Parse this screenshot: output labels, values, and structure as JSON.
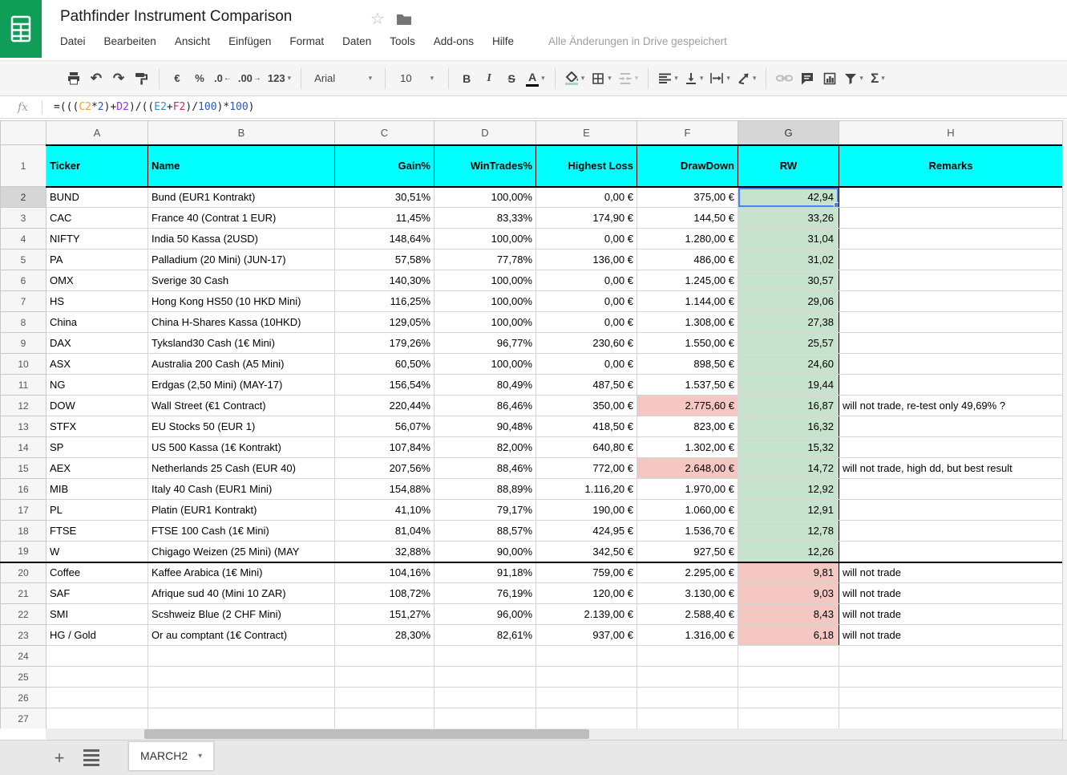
{
  "app": {
    "title": "Pathfinder Instrument Comparison",
    "menus": [
      "Datei",
      "Bearbeiten",
      "Ansicht",
      "Einfügen",
      "Format",
      "Daten",
      "Tools",
      "Add-ons",
      "Hilfe"
    ],
    "save_status": "Alle Änderungen in Drive gespeichert"
  },
  "toolbar": {
    "currency": "€",
    "percent": "%",
    "decrease_decimal": ".0",
    "increase_decimal": ".00",
    "more_formats": "123",
    "font_family": "Arial",
    "font_size": "10",
    "bold": "B",
    "italic": "I",
    "strikethrough": "S",
    "text_color": "A",
    "functions": "Σ"
  },
  "formula_bar": {
    "fx_label": "fx",
    "formula": "=(((C2*2)+D2)/((E2+F2)/100)*100)",
    "tokens": [
      {
        "text": "=(((",
        "color": "#222222"
      },
      {
        "text": "C2",
        "color": "#efa135"
      },
      {
        "text": "*",
        "color": "#222222"
      },
      {
        "text": "2",
        "color": "#2a56c6"
      },
      {
        "text": ")+",
        "color": "#222222"
      },
      {
        "text": "D2",
        "color": "#9334e6"
      },
      {
        "text": ")/((",
        "color": "#222222"
      },
      {
        "text": "E2",
        "color": "#3d85c6"
      },
      {
        "text": "+",
        "color": "#222222"
      },
      {
        "text": "F2",
        "color": "#d0275e"
      },
      {
        "text": ")/",
        "color": "#222222"
      },
      {
        "text": "100",
        "color": "#2a56c6"
      },
      {
        "text": ")*",
        "color": "#222222"
      },
      {
        "text": "100",
        "color": "#2a56c6"
      },
      {
        "text": ")",
        "color": "#222222"
      }
    ]
  },
  "colors": {
    "logo_green": "#0f9d58",
    "header_bg": "#00ffff",
    "rw_green": "#c7e2cd",
    "alert_red": "#f4c7c3",
    "selection_blue": "#4285f4",
    "fill_indicator": "#a5d6c0",
    "text_color_indicator": "#000000"
  },
  "grid": {
    "column_letters": [
      "A",
      "B",
      "C",
      "D",
      "E",
      "F",
      "G",
      "H"
    ],
    "selected_column": "G",
    "selected_row": 2,
    "selected_cell": "G2",
    "row1_number": "1",
    "header_row": {
      "ticker": "Ticker",
      "name": "Name",
      "gain": "Gain%",
      "win": "WinTrades%",
      "loss": "Highest Loss",
      "dd": "DrawDown",
      "rw": "RW",
      "remark": "Remarks"
    },
    "rows": [
      {
        "n": "2",
        "ticker": "BUND",
        "name": "Bund (EUR1 Kontrakt)",
        "gain": "30,51%",
        "win": "100,00%",
        "loss": "0,00 €",
        "dd": "375,00 €",
        "rw": "42,94",
        "rw_state": "green",
        "dd_alert": false,
        "remark": "",
        "selected": true
      },
      {
        "n": "3",
        "ticker": "CAC",
        "name": "France 40 (Contrat 1 EUR)",
        "gain": "11,45%",
        "win": "83,33%",
        "loss": "174,90 €",
        "dd": "144,50 €",
        "rw": "33,26",
        "rw_state": "green",
        "dd_alert": false,
        "remark": ""
      },
      {
        "n": "4",
        "ticker": "NIFTY",
        "name": "India 50 Kassa (2USD)",
        "gain": "148,64%",
        "win": "100,00%",
        "loss": "0,00 €",
        "dd": "1.280,00 €",
        "rw": "31,04",
        "rw_state": "green",
        "dd_alert": false,
        "remark": ""
      },
      {
        "n": "5",
        "ticker": "PA",
        "name": "Palladium (20 Mini) (JUN-17)",
        "gain": "57,58%",
        "win": "77,78%",
        "loss": "136,00 €",
        "dd": "486,00 €",
        "rw": "31,02",
        "rw_state": "green",
        "dd_alert": false,
        "remark": ""
      },
      {
        "n": "6",
        "ticker": "OMX",
        "name": "Sverige 30 Cash",
        "gain": "140,30%",
        "win": "100,00%",
        "loss": "0,00 €",
        "dd": "1.245,00 €",
        "rw": "30,57",
        "rw_state": "green",
        "dd_alert": false,
        "remark": ""
      },
      {
        "n": "7",
        "ticker": "HS",
        "name": "Hong Kong HS50 (10 HKD Mini)",
        "gain": "116,25%",
        "win": "100,00%",
        "loss": "0,00 €",
        "dd": "1.144,00 €",
        "rw": "29,06",
        "rw_state": "green",
        "dd_alert": false,
        "remark": ""
      },
      {
        "n": "8",
        "ticker": "China",
        "name": "China H-Shares Kassa (10HKD)",
        "gain": "129,05%",
        "win": "100,00%",
        "loss": "0,00 €",
        "dd": "1.308,00 €",
        "rw": "27,38",
        "rw_state": "green",
        "dd_alert": false,
        "remark": ""
      },
      {
        "n": "9",
        "ticker": "DAX",
        "name": "Tyksland30 Cash (1€ Mini)",
        "gain": "179,26%",
        "win": "96,77%",
        "loss": "230,60 €",
        "dd": "1.550,00 €",
        "rw": "25,57",
        "rw_state": "green",
        "dd_alert": false,
        "remark": ""
      },
      {
        "n": "10",
        "ticker": "ASX",
        "name": "Australia 200 Cash (A5 Mini)",
        "gain": "60,50%",
        "win": "100,00%",
        "loss": "0,00 €",
        "dd": "898,50 €",
        "rw": "24,60",
        "rw_state": "green",
        "dd_alert": false,
        "remark": ""
      },
      {
        "n": "11",
        "ticker": "NG",
        "name": "Erdgas (2,50 Mini) (MAY-17)",
        "gain": "156,54%",
        "win": "80,49%",
        "loss": "487,50 €",
        "dd": "1.537,50 €",
        "rw": "19,44",
        "rw_state": "green",
        "dd_alert": false,
        "remark": ""
      },
      {
        "n": "12",
        "ticker": "DOW",
        "name": "Wall Street (€1 Contract)",
        "gain": "220,44%",
        "win": "86,46%",
        "loss": "350,00 €",
        "dd": "2.775,60 €",
        "rw": "16,87",
        "rw_state": "green",
        "dd_alert": true,
        "remark": "will not trade, re-test only 49,69% ?"
      },
      {
        "n": "13",
        "ticker": "STFX",
        "name": "EU Stocks 50 (EUR 1)",
        "gain": "56,07%",
        "win": "90,48%",
        "loss": "418,50 €",
        "dd": "823,00 €",
        "rw": "16,32",
        "rw_state": "green",
        "dd_alert": false,
        "remark": ""
      },
      {
        "n": "14",
        "ticker": "SP",
        "name": "US 500 Kassa (1€ Kontrakt)",
        "gain": "107,84%",
        "win": "82,00%",
        "loss": "640,80 €",
        "dd": "1.302,00 €",
        "rw": "15,32",
        "rw_state": "green",
        "dd_alert": false,
        "remark": ""
      },
      {
        "n": "15",
        "ticker": "AEX",
        "name": "Netherlands 25 Cash (EUR 40)",
        "gain": "207,56%",
        "win": "88,46%",
        "loss": "772,00 €",
        "dd": "2.648,00 €",
        "rw": "14,72",
        "rw_state": "green",
        "dd_alert": true,
        "remark": "will not trade, high dd, but best result"
      },
      {
        "n": "16",
        "ticker": "MIB",
        "name": "Italy 40 Cash (EUR1 Mini)",
        "gain": "154,88%",
        "win": "88,89%",
        "loss": "1.116,20 €",
        "dd": "1.970,00 €",
        "rw": "12,92",
        "rw_state": "green",
        "dd_alert": false,
        "remark": ""
      },
      {
        "n": "17",
        "ticker": "PL",
        "name": "Platin (EUR1 Kontrakt)",
        "gain": "41,10%",
        "win": "79,17%",
        "loss": "190,00 €",
        "dd": "1.060,00 €",
        "rw": "12,91",
        "rw_state": "green",
        "dd_alert": false,
        "remark": ""
      },
      {
        "n": "18",
        "ticker": "FTSE",
        "name": "FTSE 100 Cash (1€ Mini)",
        "gain": "81,04%",
        "win": "88,57%",
        "loss": "424,95 €",
        "dd": "1.536,70 €",
        "rw": "12,78",
        "rw_state": "green",
        "dd_alert": false,
        "remark": ""
      },
      {
        "n": "19",
        "ticker": "W",
        "name": "Chigago Weizen (25 Mini) (MAY",
        "gain": "32,88%",
        "win": "90,00%",
        "loss": "342,50 €",
        "dd": "927,50 €",
        "rw": "12,26",
        "rw_state": "green",
        "dd_alert": false,
        "remark": "",
        "thick_bottom": true
      },
      {
        "n": "20",
        "ticker": "Coffee",
        "name": "Kaffee Arabica (1€ Mini)",
        "gain": "104,16%",
        "win": "91,18%",
        "loss": "759,00 €",
        "dd": "2.295,00 €",
        "rw": "9,81",
        "rw_state": "red",
        "dd_alert": false,
        "remark": "will not trade"
      },
      {
        "n": "21",
        "ticker": "SAF",
        "name": "Afrique sud 40 (Mini 10 ZAR)",
        "gain": "108,72%",
        "win": "76,19%",
        "loss": "120,00 €",
        "dd": "3.130,00 €",
        "rw": "9,03",
        "rw_state": "red",
        "dd_alert": false,
        "remark": "will not trade"
      },
      {
        "n": "22",
        "ticker": "SMI",
        "name": "Scshweiz Blue (2 CHF Mini)",
        "gain": "151,27%",
        "win": "96,00%",
        "loss": "2.139,00 €",
        "dd": "2.588,40 €",
        "rw": "8,43",
        "rw_state": "red",
        "dd_alert": false,
        "remark": "will not trade"
      },
      {
        "n": "23",
        "ticker": "HG / Gold",
        "name": "Or au comptant (1€ Contract)",
        "gain": "28,30%",
        "win": "82,61%",
        "loss": "937,00 €",
        "dd": "1.316,00 €",
        "rw": "6,18",
        "rw_state": "red",
        "dd_alert": false,
        "remark": "will not trade"
      }
    ],
    "empty_row_numbers": [
      "24",
      "25",
      "26",
      "27"
    ]
  },
  "sheet_bar": {
    "active_tab": "MARCH2"
  }
}
